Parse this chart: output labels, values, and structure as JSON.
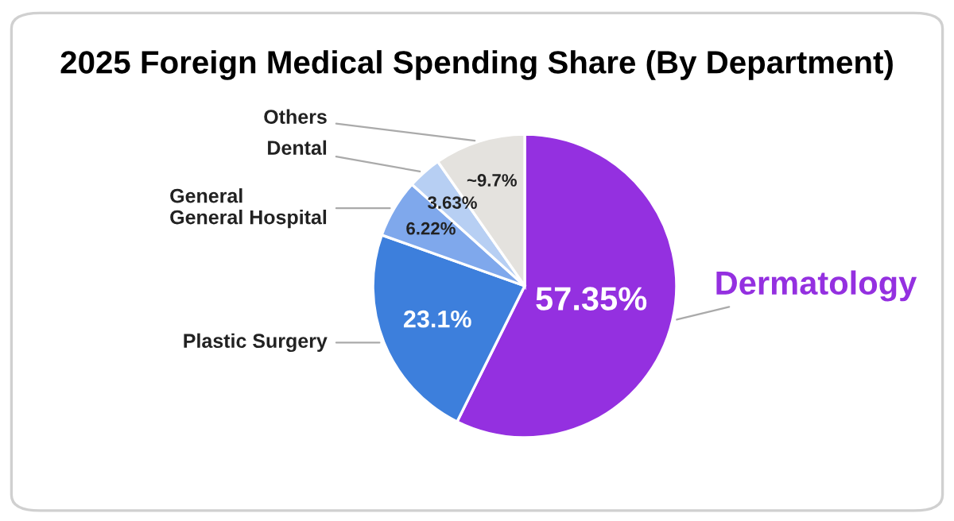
{
  "chart_data": {
    "type": "pie",
    "title": "2025 Foreign Medical Spending Share (By Department)",
    "categories": [
      "Dermatology",
      "Plastic Surgery",
      "General\nGeneral Hospital",
      "Dental",
      "Others"
    ],
    "values": [
      57.35,
      23.1,
      6.22,
      3.63,
      9.7
    ],
    "value_labels": [
      "57.35%",
      "23.1%",
      "6.22%",
      "3.63%",
      "~9.7%"
    ],
    "colors": [
      "#9430e0",
      "#3d7fdc",
      "#7fa8ec",
      "#b7cff3",
      "#e4e2de"
    ],
    "legend": false
  }
}
